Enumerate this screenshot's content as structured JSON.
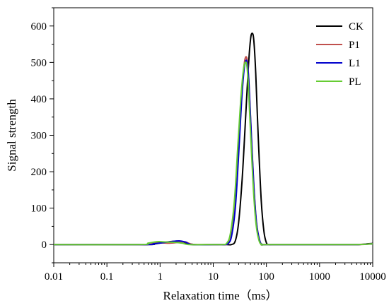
{
  "chart_data": {
    "type": "line",
    "title": "",
    "xlabel": "Relaxation time（ms）",
    "ylabel": "Signal strength",
    "x_scale": "log",
    "xlim": [
      0.01,
      10000
    ],
    "ylim": [
      -50,
      650
    ],
    "x_ticks": [
      0.01,
      0.1,
      1,
      10,
      100,
      1000,
      10000
    ],
    "x_tick_labels": [
      "0.01",
      "0.1",
      "1",
      "10",
      "100",
      "1000",
      "10000"
    ],
    "y_ticks": [
      0,
      100,
      200,
      300,
      400,
      500,
      600
    ],
    "y_tick_labels": [
      "0",
      "100",
      "200",
      "300",
      "400",
      "500",
      "600"
    ],
    "grid": false,
    "legend_position": "top-right",
    "series": [
      {
        "name": "CK",
        "color": "#000000",
        "x": [
          0.01,
          0.5,
          0.8,
          1.2,
          1.8,
          2.5,
          3.2,
          4.5,
          10,
          18,
          22,
          26,
          30,
          35,
          40,
          45,
          50,
          54,
          58,
          63,
          70,
          80,
          90,
          100,
          110,
          130,
          200,
          1000,
          5000,
          8000,
          10000
        ],
        "y": [
          0,
          0,
          2,
          6,
          9,
          8,
          4,
          0,
          0,
          0,
          0,
          10,
          60,
          180,
          330,
          470,
          560,
          580,
          560,
          470,
          300,
          120,
          35,
          5,
          0,
          0,
          0,
          0,
          0,
          2,
          3
        ]
      },
      {
        "name": "P1",
        "color": "#c0504d",
        "x": [
          0.01,
          0.45,
          0.7,
          1.0,
          1.5,
          2.2,
          3.0,
          4.2,
          10,
          16,
          19,
          22,
          26,
          30,
          34,
          38,
          41,
          44,
          47,
          52,
          58,
          65,
          75,
          85,
          100,
          1000,
          5000,
          10000
        ],
        "y": [
          0,
          0,
          3,
          5,
          4,
          6,
          7,
          0,
          0,
          0,
          3,
          25,
          110,
          260,
          400,
          490,
          515,
          500,
          440,
          300,
          160,
          60,
          10,
          0,
          0,
          0,
          0,
          2
        ]
      },
      {
        "name": "L1",
        "color": "#0000cc",
        "x": [
          0.01,
          0.5,
          0.75,
          1.1,
          1.6,
          2.3,
          3.0,
          4.0,
          10,
          16,
          19,
          22,
          26,
          30,
          34,
          38,
          41,
          44,
          47,
          52,
          58,
          65,
          75,
          85,
          100,
          1000,
          5000,
          10000
        ],
        "y": [
          0,
          0,
          2,
          5,
          8,
          10,
          7,
          0,
          0,
          0,
          3,
          22,
          100,
          245,
          390,
          480,
          505,
          495,
          440,
          300,
          160,
          60,
          10,
          0,
          0,
          0,
          0,
          2
        ]
      },
      {
        "name": "PL",
        "color": "#66cc33",
        "x": [
          0.01,
          0.4,
          0.6,
          0.9,
          1.3,
          1.9,
          2.6,
          3.6,
          10,
          15,
          18,
          21,
          25,
          29,
          33,
          37,
          40,
          43,
          46,
          51,
          57,
          64,
          73,
          83,
          100,
          1000,
          5000,
          10000
        ],
        "y": [
          0,
          0,
          4,
          8,
          7,
          6,
          4,
          0,
          0,
          0,
          4,
          30,
          120,
          270,
          400,
          480,
          500,
          490,
          430,
          290,
          150,
          55,
          10,
          0,
          0,
          0,
          0,
          2
        ]
      }
    ]
  }
}
